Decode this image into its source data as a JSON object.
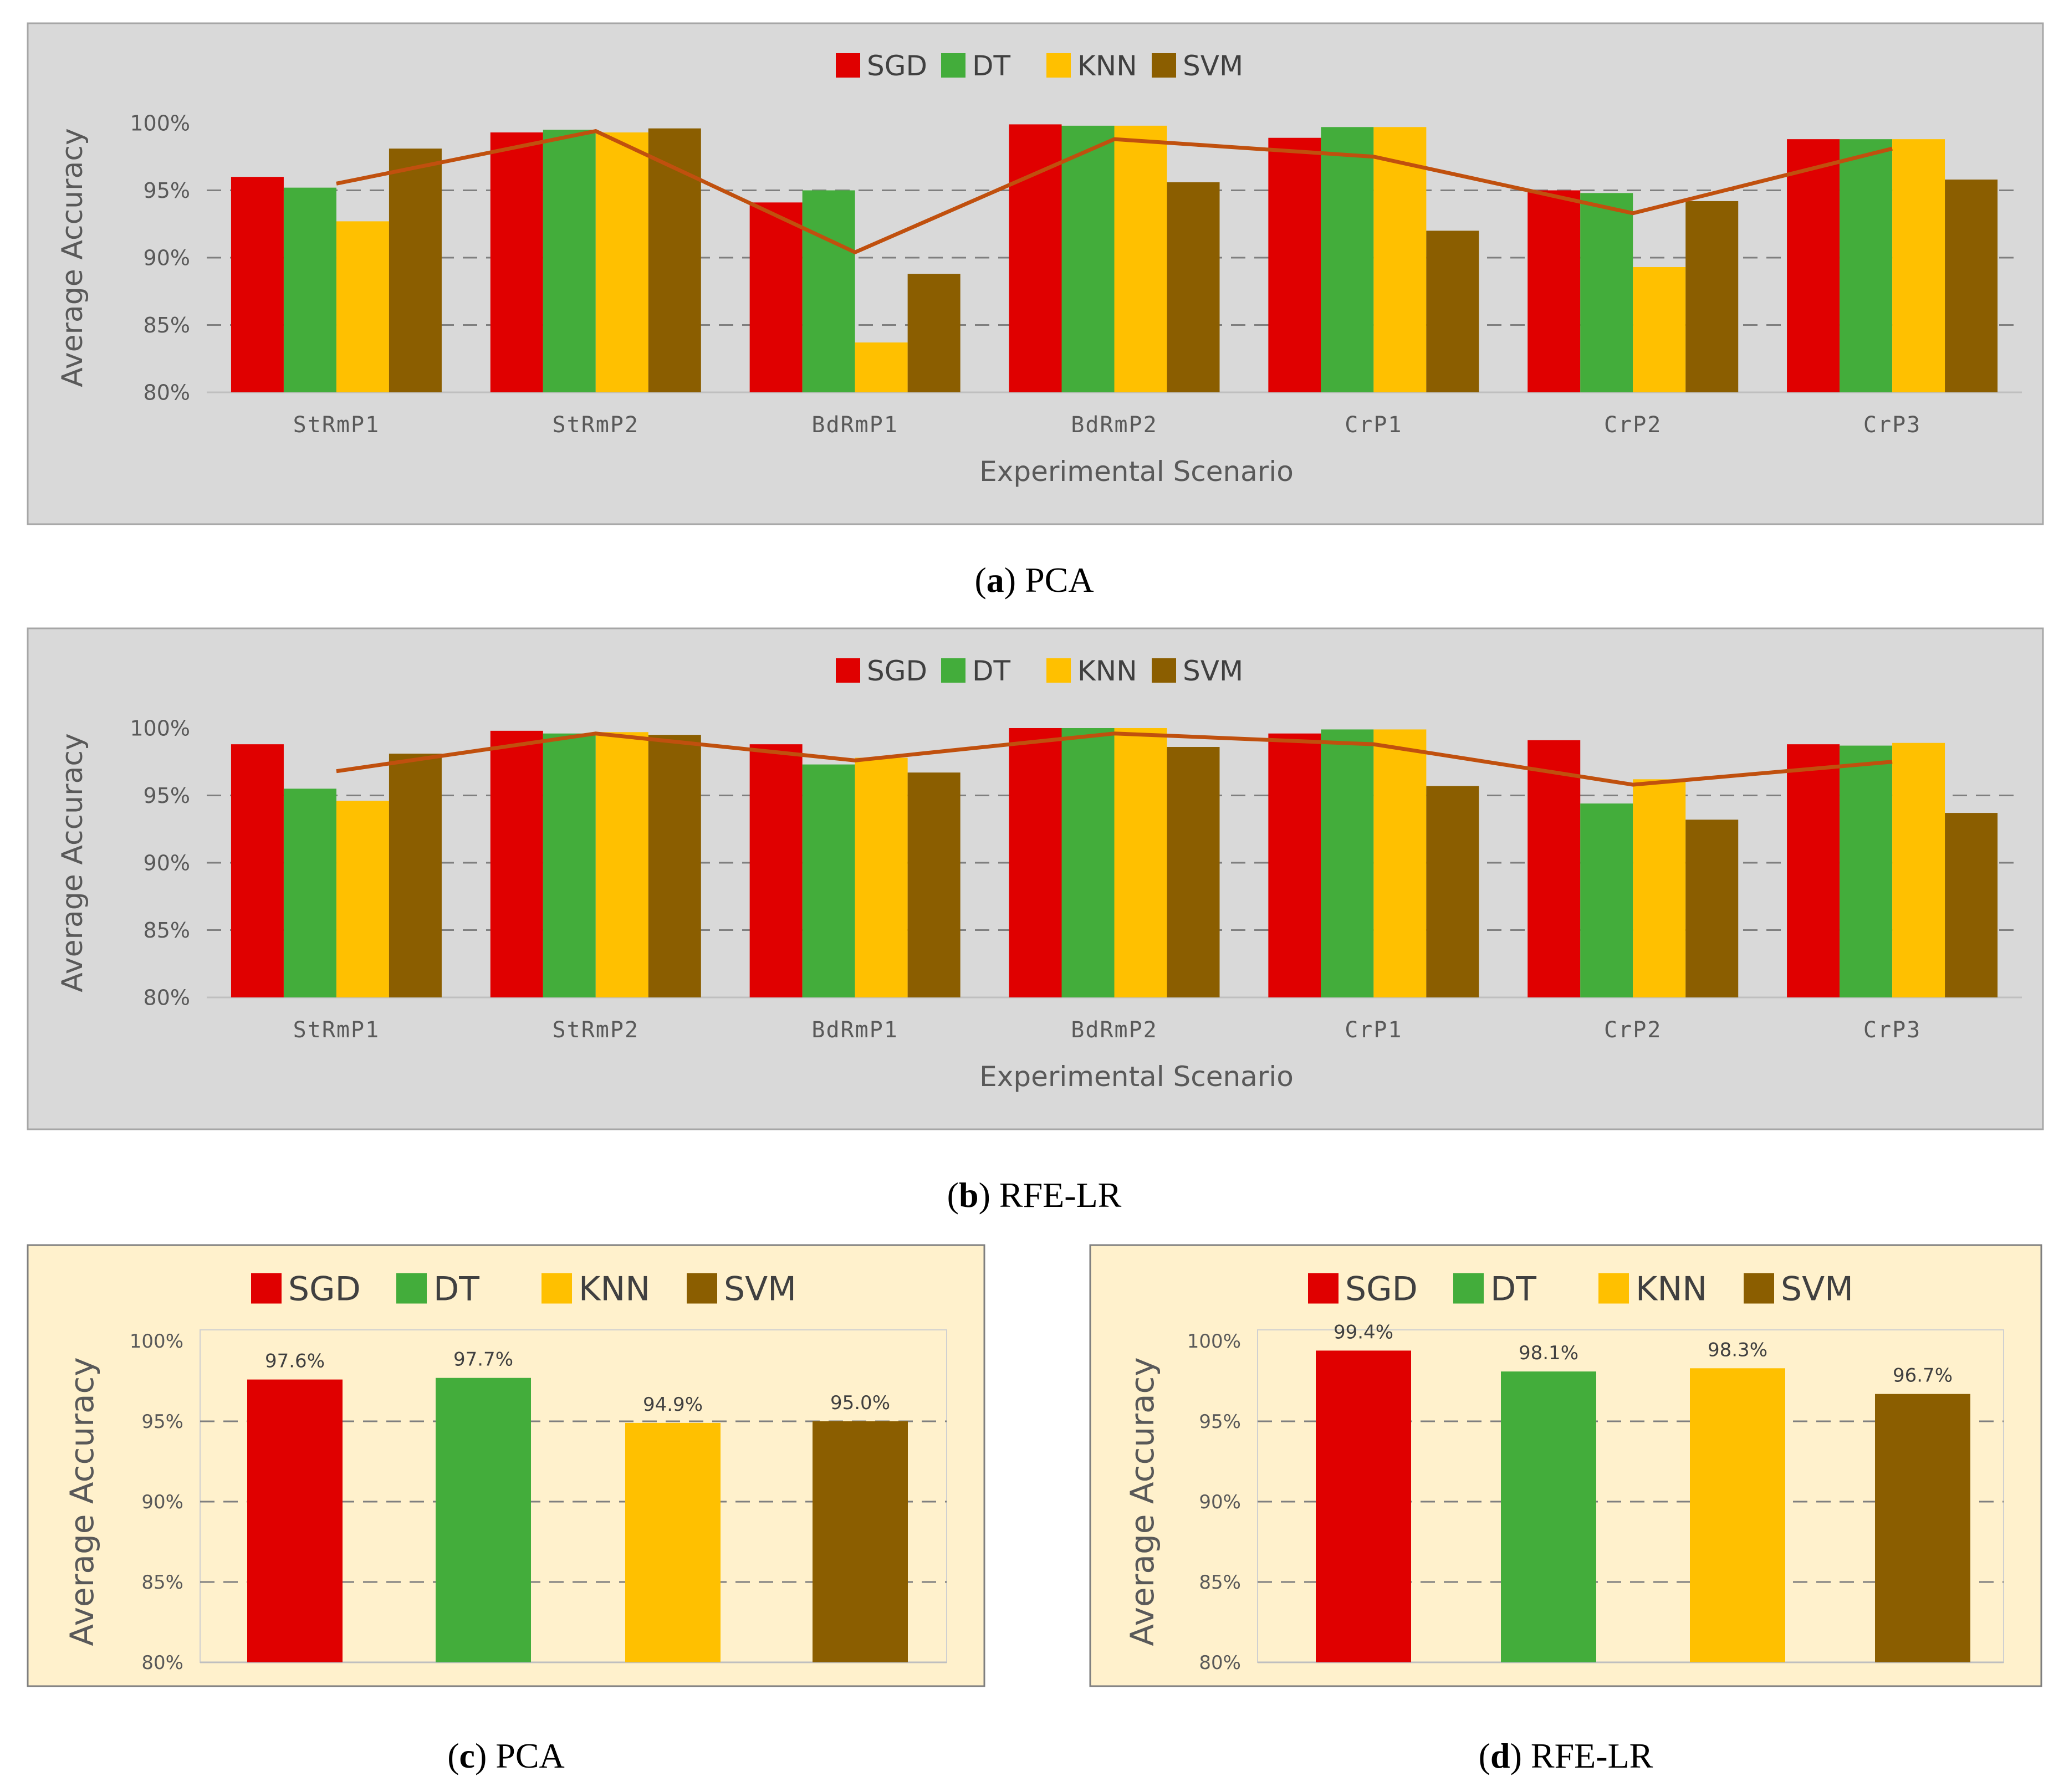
{
  "colors": {
    "SGD": "#e00000",
    "DT": "#43ad3b",
    "KNN": "#ffc000",
    "SVM": "#8b5e00",
    "trend": "#c0500e",
    "grey_bg": "#d9d9d9",
    "cream_bg": "#fff1cc",
    "grid": "#7f7f7f"
  },
  "captions": {
    "a": {
      "letter": "a",
      "text": "PCA"
    },
    "b": {
      "letter": "b",
      "text": "RFE-LR"
    },
    "c": {
      "letter": "c",
      "text": "PCA"
    },
    "d": {
      "letter": "d",
      "text": "RFE-LR"
    }
  },
  "chart_data": [
    {
      "id": "a",
      "type": "bar",
      "title": "",
      "xlabel": "Experimental Scenario",
      "ylabel": "Average Accuracy",
      "ylim": [
        80,
        100
      ],
      "yticks": [
        "80%",
        "85%",
        "90%",
        "95%",
        "100%"
      ],
      "grid": "dashed horizontal",
      "legend": "top-center",
      "categories": [
        "StRmP1",
        "StRmP2",
        "BdRmP1",
        "BdRmP2",
        "CrP1",
        "CrP2",
        "CrP3"
      ],
      "series": [
        {
          "name": "SGD",
          "values": [
            96.0,
            99.3,
            94.1,
            99.9,
            98.9,
            95.0,
            98.8
          ]
        },
        {
          "name": "DT",
          "values": [
            95.2,
            99.5,
            95.0,
            99.8,
            99.7,
            94.8,
            98.8
          ]
        },
        {
          "name": "KNN",
          "values": [
            92.7,
            99.3,
            83.7,
            99.8,
            99.7,
            89.3,
            98.8
          ]
        },
        {
          "name": "SVM",
          "values": [
            98.1,
            99.6,
            88.8,
            95.6,
            92.0,
            94.2,
            95.8
          ]
        }
      ],
      "trend": {
        "name": "average",
        "values": [
          95.5,
          99.4,
          90.4,
          98.8,
          97.5,
          93.3,
          98.1
        ]
      }
    },
    {
      "id": "b",
      "type": "bar",
      "title": "",
      "xlabel": "Experimental Scenario",
      "ylabel": "Average Accuracy",
      "ylim": [
        80,
        100
      ],
      "yticks": [
        "80%",
        "85%",
        "90%",
        "95%",
        "100%"
      ],
      "grid": "dashed horizontal",
      "legend": "top-center",
      "categories": [
        "StRmP1",
        "StRmP2",
        "BdRmP1",
        "BdRmP2",
        "CrP1",
        "CrP2",
        "CrP3"
      ],
      "series": [
        {
          "name": "SGD",
          "values": [
            98.8,
            99.8,
            98.8,
            100.0,
            99.6,
            99.1,
            98.8
          ]
        },
        {
          "name": "DT",
          "values": [
            95.5,
            99.6,
            97.3,
            100.0,
            99.9,
            94.4,
            98.7
          ]
        },
        {
          "name": "KNN",
          "values": [
            94.6,
            99.7,
            97.8,
            100.0,
            99.9,
            96.2,
            98.9
          ]
        },
        {
          "name": "SVM",
          "values": [
            98.1,
            99.5,
            96.7,
            98.6,
            95.7,
            93.2,
            93.7
          ]
        }
      ],
      "trend": {
        "name": "average",
        "values": [
          96.8,
          99.6,
          97.6,
          99.6,
          98.8,
          95.8,
          97.5
        ]
      }
    },
    {
      "id": "c",
      "type": "bar",
      "title": "",
      "xlabel": "",
      "ylabel": "Average Accuracy",
      "ylim": [
        80,
        100
      ],
      "yticks": [
        "80%",
        "85%",
        "90%",
        "95%",
        "100%"
      ],
      "grid": "dashed horizontal",
      "legend": "top-center",
      "categories": [
        "SGD",
        "DT",
        "KNN",
        "SVM"
      ],
      "values": [
        97.6,
        97.7,
        94.9,
        95.0
      ],
      "data_labels": [
        "97.6%",
        "97.7%",
        "94.9%",
        "95.0%"
      ]
    },
    {
      "id": "d",
      "type": "bar",
      "title": "",
      "xlabel": "",
      "ylabel": "Average Accuracy",
      "ylim": [
        80,
        100
      ],
      "yticks": [
        "80%",
        "85%",
        "90%",
        "95%",
        "100%"
      ],
      "grid": "dashed horizontal",
      "legend": "top-center",
      "categories": [
        "SGD",
        "DT",
        "KNN",
        "SVM"
      ],
      "values": [
        99.4,
        98.1,
        98.3,
        96.7
      ],
      "data_labels": [
        "99.4%",
        "98.1%",
        "98.3%",
        "96.7%"
      ]
    }
  ]
}
